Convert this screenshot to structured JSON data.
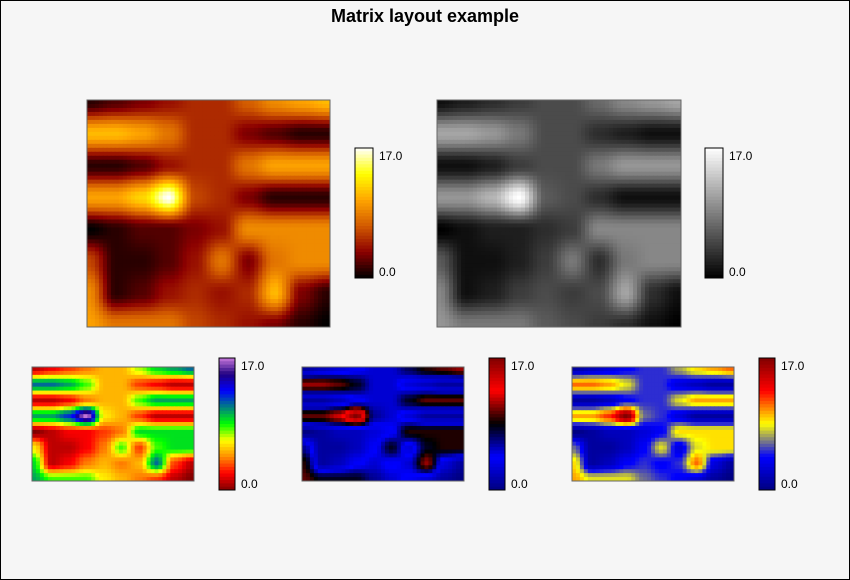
{
  "title": "Matrix layout example",
  "chart_data": [
    {
      "type": "heatmap",
      "colormap": "heat",
      "colorbar": {
        "min": 0.0,
        "max": 17.0,
        "tick_labels": [
          "0.0",
          "17.0"
        ]
      },
      "stops": [
        "#000000",
        "#8c0000",
        "#d25a00",
        "#ffa500",
        "#ffff00",
        "#ffffff"
      ]
    },
    {
      "type": "heatmap",
      "colormap": "gray",
      "colorbar": {
        "min": 0.0,
        "max": 17.0,
        "tick_labels": [
          "0.0",
          "17.0"
        ]
      },
      "stops": [
        "#000000",
        "#ffffff"
      ]
    },
    {
      "type": "heatmap",
      "colormap": "rainbow",
      "colorbar": {
        "min": 0.0,
        "max": 17.0,
        "tick_labels": [
          "0.0",
          "17.0"
        ]
      },
      "stops": [
        "#800000",
        "#ff0000",
        "#ff8c00",
        "#ffff00",
        "#00ff00",
        "#008080",
        "#0000ff",
        "#200080",
        "#c878dc"
      ]
    },
    {
      "type": "heatmap",
      "colormap": "blue-black-red",
      "colorbar": {
        "min": 0.0,
        "max": 17.0,
        "tick_labels": [
          "0.0",
          "17.0"
        ]
      },
      "stops": [
        "#000080",
        "#0000ff",
        "#000000",
        "#ff0000",
        "#800000"
      ]
    },
    {
      "type": "heatmap",
      "colormap": "blue-yellow-red",
      "colorbar": {
        "min": 0.0,
        "max": 17.0,
        "tick_labels": [
          "0.0",
          "17.0"
        ]
      },
      "stops": [
        "#000080",
        "#0000ff",
        "#ffff00",
        "#ff0000",
        "#800000"
      ]
    }
  ],
  "matrix": [
    [
      1,
      2,
      3,
      4,
      5,
      5,
      7,
      9,
      10,
      11
    ],
    [
      11,
      11,
      10,
      8,
      5,
      5,
      3,
      2,
      1,
      1
    ],
    [
      1,
      1,
      2,
      4,
      5,
      5,
      8,
      10,
      10,
      10
    ],
    [
      10,
      10,
      12,
      17,
      6,
      5,
      3,
      1,
      1,
      1
    ],
    [
      0,
      1,
      2,
      2,
      3,
      4,
      9,
      9,
      9,
      9
    ],
    [
      6,
      1,
      1,
      2,
      4,
      8,
      3,
      8,
      9,
      9
    ],
    [
      9,
      1,
      2,
      4,
      5,
      4,
      5,
      11,
      3,
      1
    ],
    [
      10,
      8,
      8,
      8,
      6,
      5,
      4,
      3,
      1,
      0
    ]
  ]
}
